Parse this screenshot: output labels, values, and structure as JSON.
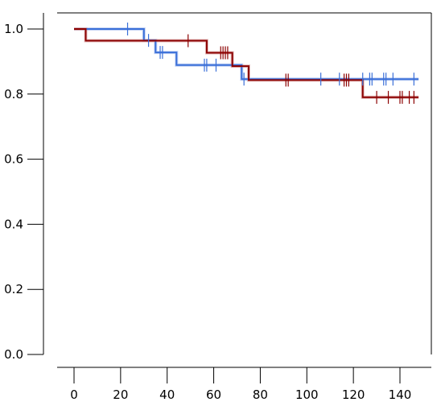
{
  "chart_data": {
    "type": "line",
    "title": "",
    "xlabel": "",
    "ylabel": "",
    "xlim": [
      -7,
      153
    ],
    "ylim": [
      0,
      1.05
    ],
    "xticks": [
      0,
      20,
      40,
      60,
      80,
      100,
      120,
      140
    ],
    "yticks": [
      0.0,
      0.2,
      0.4,
      0.6,
      0.8,
      1.0
    ],
    "xtick_labels": [
      "0",
      "20",
      "40",
      "60",
      "80",
      "100",
      "120",
      "140"
    ],
    "ytick_labels": [
      "0.0",
      "0.2",
      "0.4",
      "0.6",
      "0.8",
      "1.0"
    ],
    "grid": false,
    "legend": false,
    "series": [
      {
        "color": "#3a6fd8",
        "band_color": "#a9bff0",
        "steps": [
          [
            0,
            1.0
          ],
          [
            30,
            1.0
          ],
          [
            30,
            0.965
          ],
          [
            35,
            0.965
          ],
          [
            35,
            0.928
          ],
          [
            44,
            0.928
          ],
          [
            44,
            0.889
          ],
          [
            69,
            0.889
          ],
          [
            69,
            0.889
          ],
          [
            72,
            0.889
          ],
          [
            72,
            0.846
          ],
          [
            148,
            0.846
          ]
        ],
        "censor": [
          [
            23,
            1.0
          ],
          [
            32,
            0.965
          ],
          [
            37,
            0.928
          ],
          [
            38,
            0.928
          ],
          [
            56,
            0.889
          ],
          [
            57,
            0.889
          ],
          [
            61,
            0.889
          ],
          [
            73,
            0.846
          ],
          [
            106,
            0.846
          ],
          [
            114,
            0.846
          ],
          [
            124,
            0.846
          ],
          [
            127,
            0.846
          ],
          [
            128,
            0.846
          ],
          [
            133,
            0.846
          ],
          [
            134,
            0.846
          ],
          [
            137,
            0.846
          ],
          [
            146,
            0.846
          ]
        ]
      },
      {
        "color": "#8b0000",
        "band_color": "#d9a0a0",
        "steps": [
          [
            0,
            1.0
          ],
          [
            5,
            1.0
          ],
          [
            5,
            0.964
          ],
          [
            57,
            0.964
          ],
          [
            57,
            0.927
          ],
          [
            68,
            0.927
          ],
          [
            68,
            0.886
          ],
          [
            75,
            0.886
          ],
          [
            75,
            0.843
          ],
          [
            124,
            0.843
          ],
          [
            124,
            0.79
          ],
          [
            148,
            0.79
          ]
        ],
        "censor": [
          [
            49,
            0.964
          ],
          [
            63,
            0.927
          ],
          [
            64,
            0.927
          ],
          [
            65,
            0.927
          ],
          [
            66,
            0.927
          ],
          [
            91,
            0.843
          ],
          [
            92,
            0.843
          ],
          [
            116,
            0.843
          ],
          [
            117,
            0.843
          ],
          [
            118,
            0.843
          ],
          [
            130,
            0.79
          ],
          [
            135,
            0.79
          ],
          [
            140,
            0.79
          ],
          [
            141,
            0.79
          ],
          [
            144,
            0.79
          ],
          [
            146,
            0.79
          ]
        ]
      }
    ]
  }
}
